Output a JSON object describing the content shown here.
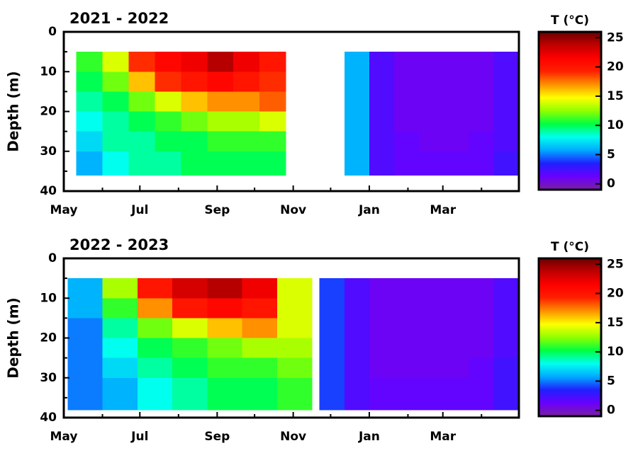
{
  "chart_data": [
    {
      "type": "heatmap",
      "title": "2021 - 2022",
      "y_label": "Depth (m)",
      "xlim": [
        0,
        365
      ],
      "xticks": [
        {
          "value": 0,
          "label": "May"
        },
        {
          "value": 61,
          "label": "Jul"
        },
        {
          "value": 123,
          "label": "Sep"
        },
        {
          "value": 184,
          "label": "Nov"
        },
        {
          "value": 245,
          "label": "Jan"
        },
        {
          "value": 304,
          "label": "Mar"
        }
      ],
      "xminor": [
        31,
        92,
        153,
        214,
        276,
        335
      ],
      "ylim": [
        40,
        0
      ],
      "yticks": [
        0,
        10,
        20,
        30,
        40
      ],
      "yminor": [
        5,
        15,
        25,
        35
      ],
      "x_edges": [
        10,
        31,
        52,
        73,
        94,
        115,
        136,
        157,
        178,
        225,
        245,
        265,
        285,
        305,
        325,
        345,
        365
      ],
      "depth_edges": [
        5,
        10,
        15,
        20,
        25,
        30,
        36
      ],
      "z": [
        [
          11,
          14,
          19,
          21,
          22,
          24,
          22,
          20,
          null,
          6,
          2,
          1,
          1,
          1,
          1,
          2
        ],
        [
          10,
          12,
          16,
          19,
          20,
          21,
          20,
          19,
          null,
          6,
          2,
          1,
          1,
          1,
          1,
          2
        ],
        [
          9,
          10,
          12,
          14,
          16,
          17,
          17,
          18,
          null,
          6,
          2,
          1,
          1,
          1,
          1,
          2
        ],
        [
          8,
          9,
          10,
          11,
          12,
          13,
          13,
          14,
          null,
          6,
          2,
          1,
          1,
          1,
          1,
          2
        ],
        [
          7,
          9,
          9,
          10,
          10,
          11,
          11,
          11,
          null,
          6,
          2,
          1.5,
          1,
          1,
          1.5,
          2
        ],
        [
          6,
          8,
          9,
          9,
          10,
          10,
          10,
          10,
          null,
          6,
          2,
          1.5,
          1.5,
          1.5,
          1.5,
          2.5
        ]
      ],
      "colorbar": {
        "label": "T (°C)",
        "clim": [
          -1,
          26
        ],
        "ticks": [
          0,
          5,
          10,
          15,
          20,
          25
        ],
        "colormap": [
          "#7a1fa0",
          "#6a00ff",
          "#2020ff",
          "#00aaff",
          "#00ffee",
          "#00ff40",
          "#90ff00",
          "#ffff00",
          "#ff9000",
          "#ff2000",
          "#ff0000",
          "#c00000",
          "#6a0000"
        ]
      }
    },
    {
      "type": "heatmap",
      "title": "2022 - 2023",
      "y_label": "Depth (m)",
      "xlim": [
        0,
        365
      ],
      "xticks": [
        {
          "value": 0,
          "label": "May"
        },
        {
          "value": 61,
          "label": "Jul"
        },
        {
          "value": 123,
          "label": "Sep"
        },
        {
          "value": 184,
          "label": "Nov"
        },
        {
          "value": 245,
          "label": "Jan"
        },
        {
          "value": 304,
          "label": "Mar"
        }
      ],
      "xminor": [
        31,
        92,
        153,
        214,
        276,
        335
      ],
      "ylim": [
        40,
        0
      ],
      "yticks": [
        0,
        10,
        20,
        30,
        40
      ],
      "yminor": [
        5,
        15,
        25,
        35
      ],
      "x_edges": [
        3,
        31,
        59,
        87,
        115,
        143,
        171,
        199,
        205,
        225,
        245,
        265,
        285,
        305,
        325,
        345,
        365
      ],
      "depth_edges": [
        5,
        10,
        15,
        20,
        25,
        30,
        38
      ],
      "z": [
        [
          6,
          13,
          20,
          23,
          24,
          22,
          14,
          null,
          4,
          2,
          1,
          1,
          1,
          1,
          1,
          2
        ],
        [
          6,
          11,
          17,
          20,
          21,
          20,
          14,
          null,
          4,
          2,
          1,
          1,
          1,
          1,
          1,
          2
        ],
        [
          5,
          9,
          12,
          14,
          16,
          17,
          14,
          null,
          4,
          2,
          1,
          1,
          1,
          1,
          1,
          2
        ],
        [
          5,
          8,
          10,
          11,
          12,
          13,
          13,
          null,
          4,
          2,
          1,
          1,
          1,
          1,
          1,
          2
        ],
        [
          5,
          7,
          9,
          10,
          11,
          11,
          12,
          null,
          4,
          2,
          1,
          1,
          1,
          1,
          1.5,
          2.5
        ],
        [
          5,
          6,
          8,
          9,
          10,
          10,
          11,
          null,
          4,
          2,
          1.5,
          1.5,
          1.5,
          1.5,
          1.5,
          2.5
        ]
      ],
      "colorbar": {
        "label": "T (°C)",
        "clim": [
          -1,
          26
        ],
        "ticks": [
          0,
          5,
          10,
          15,
          20,
          25
        ],
        "colormap": [
          "#7a1fa0",
          "#6a00ff",
          "#2020ff",
          "#00aaff",
          "#00ffee",
          "#00ff40",
          "#90ff00",
          "#ffff00",
          "#ff9000",
          "#ff2000",
          "#ff0000",
          "#c00000",
          "#6a0000"
        ]
      }
    }
  ]
}
